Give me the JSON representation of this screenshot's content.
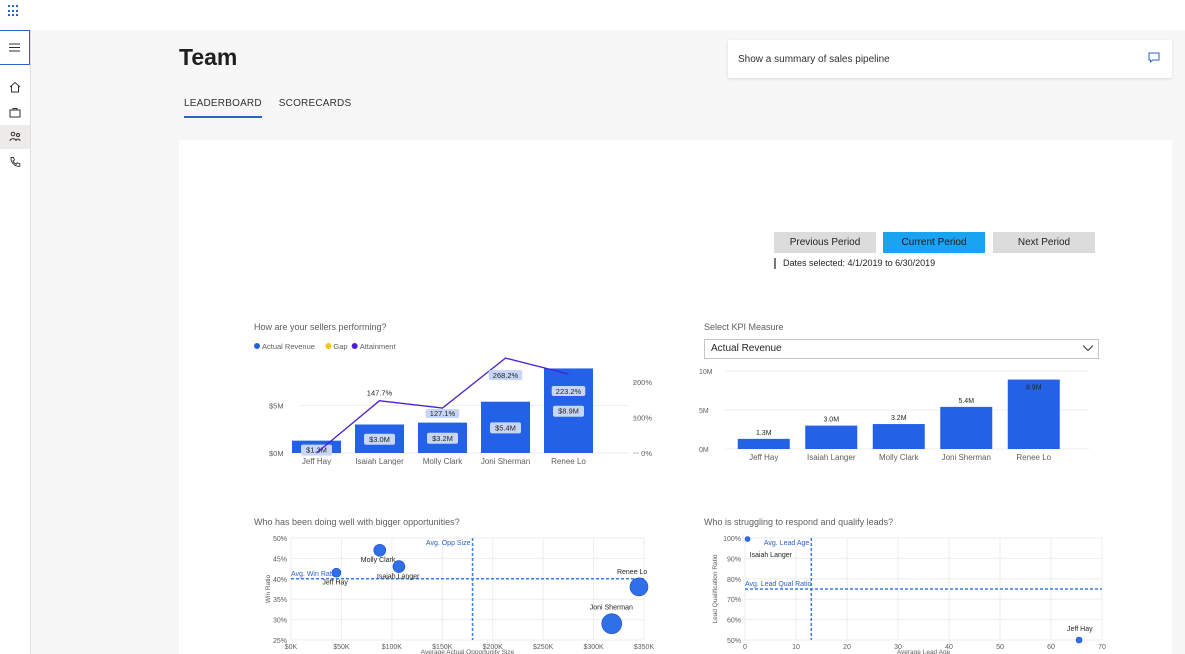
{
  "page": {
    "title": "Team"
  },
  "tabs": [
    {
      "label": "LEADERBOARD",
      "active": true
    },
    {
      "label": "SCORECARDS",
      "active": false
    }
  ],
  "copilot": {
    "prompt": "Show a summary of sales pipeline"
  },
  "period": {
    "prev": "Previous Period",
    "current": "Current Period",
    "next": "Next Period",
    "dates": "Dates selected: 4/1/2019 to 6/30/2019"
  },
  "kpi": {
    "label": "Select KPI Measure",
    "selected": "Actual Revenue"
  },
  "colors": {
    "accent": "#2b63c4",
    "bar": "#2362e6",
    "line": "#4a1fd4",
    "gap": "#f2c811",
    "current_btn": "#1aa3f0"
  },
  "chart_data": [
    {
      "type": "bar",
      "title": "How are your sellers performing?",
      "legend": [
        "Actual Revenue",
        "Gap",
        "Attainment"
      ],
      "categories": [
        "Jeff Hay",
        "Isaiah Langer",
        "Molly Clark",
        "Joni Sherman",
        "Renee Lo"
      ],
      "series": [
        {
          "name": "Actual Revenue",
          "values": [
            1.3,
            3.0,
            3.2,
            5.4,
            8.9
          ],
          "labels": [
            "$1.3M",
            "$3.0M",
            "$3.2M",
            "$5.4M",
            "$8.9M"
          ]
        },
        {
          "name": "Attainment",
          "values": [
            null,
            147.7,
            127.1,
            268.2,
            223.2
          ],
          "labels": [
            "",
            "147.7%",
            "127.1%",
            "268.2%",
            "223.2%"
          ]
        }
      ],
      "y_ticks": [
        "$0M",
        "$5M"
      ],
      "y2_ticks": [
        "0%",
        "100%",
        "200%"
      ]
    },
    {
      "type": "bar",
      "categories": [
        "Jeff Hay",
        "Isaiah Langer",
        "Molly Clark",
        "Joni Sherman",
        "Renee Lo"
      ],
      "values": [
        1.3,
        3.0,
        3.2,
        5.4,
        8.9
      ],
      "labels": [
        "1.3M",
        "3.0M",
        "3.2M",
        "5.4M",
        "8.9M"
      ],
      "y_ticks": [
        "0M",
        "5M",
        "10M"
      ],
      "ylim": [
        0,
        10
      ]
    },
    {
      "type": "scatter",
      "title": "Who has been doing well with bigger opportunities?",
      "xlabel": "Average Actual Opportunity Size",
      "ylabel": "Win Ratio",
      "x_ticks": [
        "$0K",
        "$50K",
        "$100K",
        "$150K",
        "$200K",
        "$250K",
        "$300K",
        "$350K"
      ],
      "y_ticks": [
        "25%",
        "30%",
        "35%",
        "40%",
        "45%",
        "50%"
      ],
      "points": [
        {
          "name": "Jeff Hay",
          "x": 45,
          "y": 41.5
        },
        {
          "name": "Molly Clark",
          "x": 88,
          "y": 47
        },
        {
          "name": "Isaiah Langer",
          "x": 107,
          "y": 43
        },
        {
          "name": "Joni Sherman",
          "x": 318,
          "y": 29
        },
        {
          "name": "Renee Lo",
          "x": 345,
          "y": 38
        }
      ],
      "reference_lines": [
        {
          "label": "Avg. Opp Size",
          "x": 180
        },
        {
          "label": "Avg. Win Ratio",
          "y": 40
        }
      ]
    },
    {
      "type": "scatter",
      "title": "Who is struggling to respond and qualify leads?",
      "xlabel": "Average Lead Age",
      "ylabel": "Lead Qualification Ratio",
      "x_ticks": [
        "0",
        "10",
        "20",
        "30",
        "40",
        "50",
        "60",
        "70"
      ],
      "y_ticks": [
        "50%",
        "60%",
        "70%",
        "80%",
        "90%",
        "100%"
      ],
      "points": [
        {
          "name": "Isaiah Langer",
          "x": 0.5,
          "y": 99.5
        },
        {
          "name": "Jeff Hay",
          "x": 65.5,
          "y": 50
        }
      ],
      "reference_lines": [
        {
          "label": "Avg. Lead Age",
          "x": 13
        },
        {
          "label": "Avg. Lead Qual Ratio",
          "y": 75
        }
      ]
    }
  ]
}
